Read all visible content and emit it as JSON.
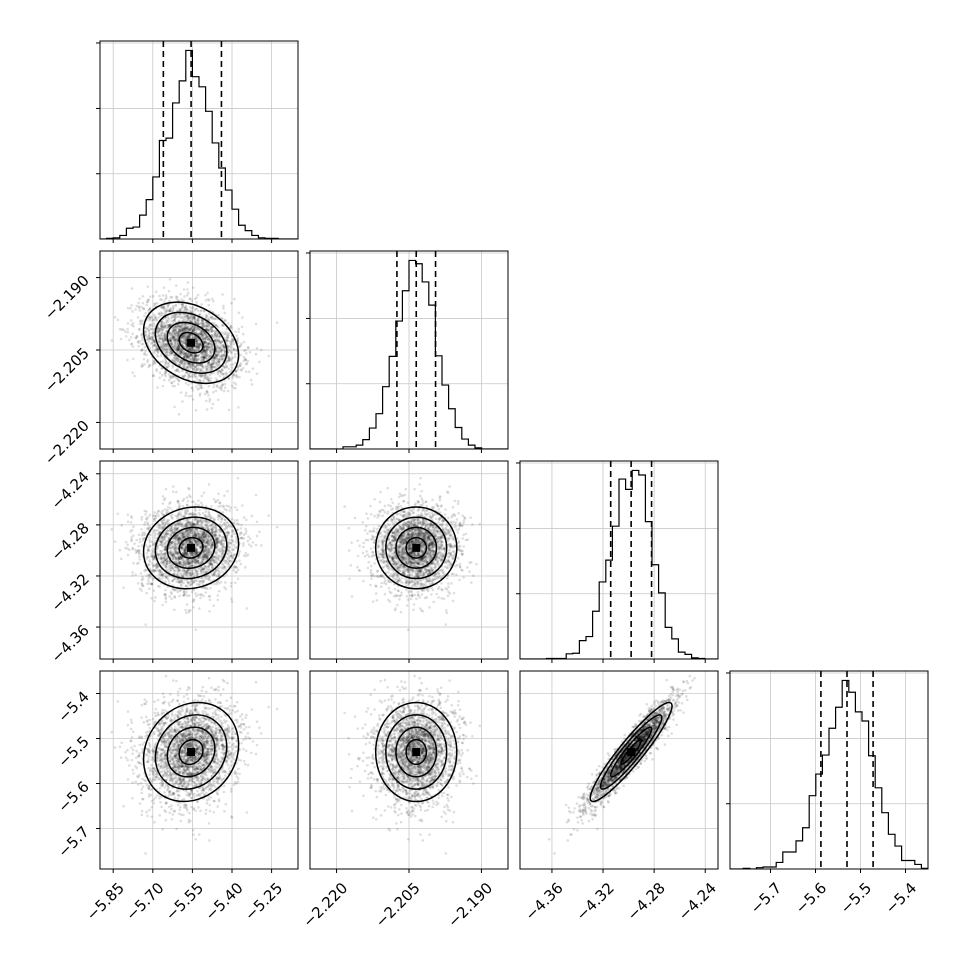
{
  "chart_data": {
    "type": "corner",
    "n_params": 4,
    "params": [
      {
        "mean": -5.555,
        "sd": 0.09,
        "quantiles": [
          -5.66,
          -5.555,
          -5.44
        ],
        "range": [
          -5.9,
          -5.15
        ],
        "ticks": [
          -5.85,
          -5.7,
          -5.55,
          -5.4,
          -5.25
        ],
        "tick_labels": [
          "−5.85",
          "−5.70",
          "−5.55",
          "−5.40",
          "−5.25"
        ]
      },
      {
        "mean": -2.2035,
        "sd": 0.0042,
        "quantiles": [
          -2.2075,
          -2.2035,
          -2.1995
        ],
        "range": [
          -2.2255,
          -2.1845
        ],
        "ticks": [
          -2.22,
          -2.205,
          -2.19
        ],
        "tick_labels": [
          "−2.220",
          "−2.205",
          "−2.190"
        ]
      },
      {
        "mean": -4.298,
        "sd": 0.016,
        "quantiles": [
          -4.314,
          -4.298,
          -4.282
        ],
        "range": [
          -4.385,
          -4.23
        ],
        "ticks": [
          -4.36,
          -4.32,
          -4.28,
          -4.24
        ],
        "tick_labels": [
          "−4.36",
          "−4.32",
          "−4.28",
          "−4.24"
        ]
      },
      {
        "mean": -5.53,
        "sd": 0.055,
        "quantiles": [
          -5.588,
          -5.53,
          -5.472
        ],
        "range": [
          -5.79,
          -5.35
        ],
        "ticks": [
          -5.7,
          -5.6,
          -5.5,
          -5.4
        ],
        "tick_labels": [
          "−5.7",
          "−5.6",
          "−5.5",
          "−5.4"
        ]
      }
    ],
    "correlations": [
      [
        1.0,
        -0.3,
        0.1,
        0.15
      ],
      [
        -0.3,
        1.0,
        0.0,
        0.0
      ],
      [
        0.1,
        0.0,
        1.0,
        0.93
      ],
      [
        0.15,
        0.0,
        0.93,
        1.0
      ]
    ],
    "n_samples": 2600,
    "hist_bins": 30,
    "contour_levels_sigma": [
      0.5,
      1.0,
      1.5,
      2.0
    ],
    "grid": true,
    "quantile_line_style": "dashed"
  }
}
